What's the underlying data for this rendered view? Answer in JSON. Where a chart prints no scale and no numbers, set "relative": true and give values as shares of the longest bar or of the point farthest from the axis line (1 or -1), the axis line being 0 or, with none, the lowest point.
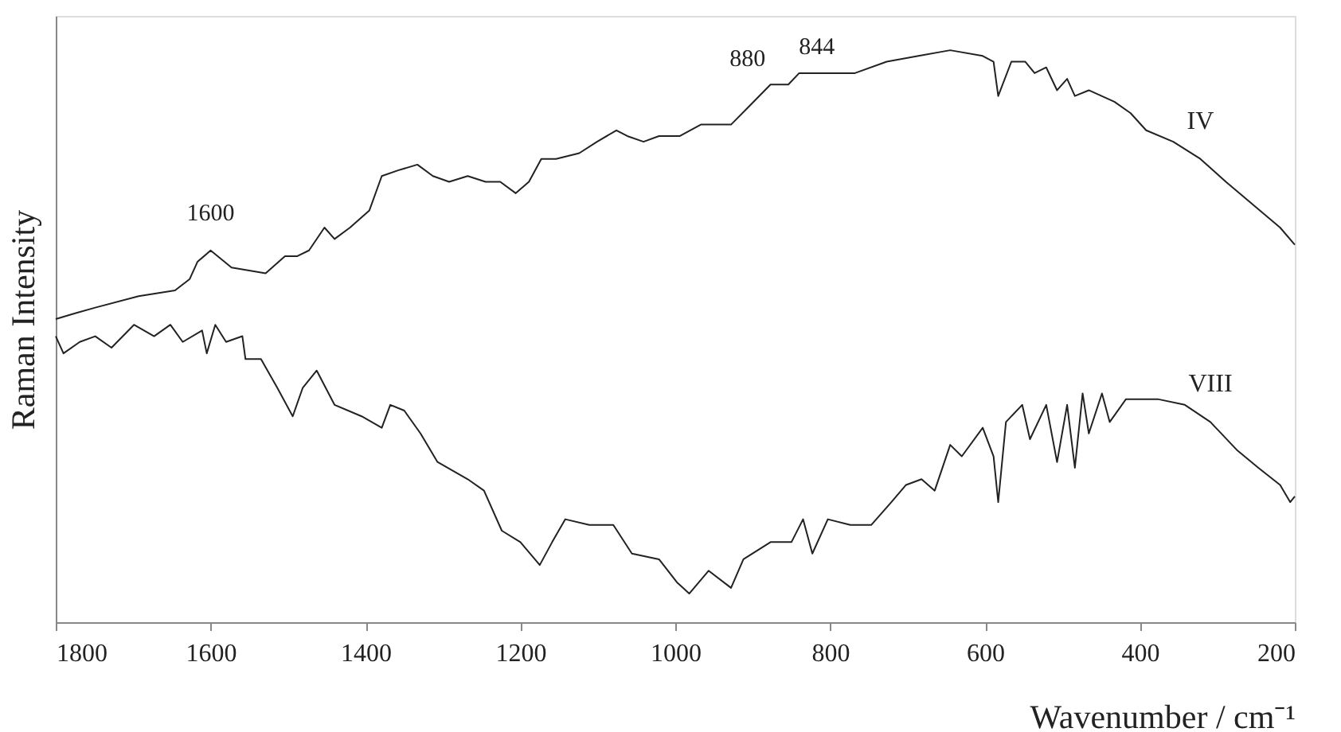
{
  "chart_data": {
    "type": "line",
    "relative": true,
    "xlabel": "Wavenumber / cm⁻¹",
    "ylabel": "Raman Intensity",
    "xlim": [
      1800,
      200
    ],
    "xticks": [
      1800,
      1600,
      1400,
      1200,
      1000,
      800,
      600,
      400,
      200
    ],
    "grid": false,
    "line_style": "solid",
    "marker": "none",
    "annotations": [
      {
        "text": "1600",
        "x": 1600,
        "y": 0.65
      },
      {
        "text": "880",
        "x": 880,
        "y": 0.92
      },
      {
        "text": "844",
        "x": 844,
        "y": 0.94
      }
    ],
    "series": [
      {
        "name": "IV",
        "color": "#222222",
        "x": [
          1800,
          1775,
          1749,
          1693,
          1646,
          1627,
          1617,
          1600,
          1573,
          1529,
          1504,
          1488,
          1473,
          1453,
          1440,
          1420,
          1395,
          1379,
          1358,
          1333,
          1313,
          1292,
          1268,
          1245,
          1226,
          1206,
          1189,
          1173,
          1154,
          1124,
          1101,
          1076,
          1062,
          1041,
          1021,
          994,
          967,
          928,
          906,
          877,
          854,
          840,
          815,
          768,
          727,
          686,
          645,
          603,
          589,
          583,
          566,
          548,
          536,
          521,
          507,
          494,
          484,
          466,
          433,
          412,
          392,
          357,
          322,
          289,
          254,
          219,
          200
        ],
        "values": [
          0.53,
          0.54,
          0.55,
          0.57,
          0.58,
          0.6,
          0.63,
          0.65,
          0.62,
          0.61,
          0.64,
          0.64,
          0.65,
          0.69,
          0.67,
          0.69,
          0.72,
          0.78,
          0.79,
          0.8,
          0.78,
          0.77,
          0.78,
          0.77,
          0.77,
          0.75,
          0.77,
          0.81,
          0.81,
          0.82,
          0.84,
          0.86,
          0.85,
          0.84,
          0.85,
          0.85,
          0.87,
          0.87,
          0.9,
          0.94,
          0.94,
          0.96,
          0.96,
          0.96,
          0.98,
          0.99,
          1.0,
          0.99,
          0.98,
          0.92,
          0.98,
          0.98,
          0.96,
          0.97,
          0.93,
          0.95,
          0.92,
          0.93,
          0.91,
          0.89,
          0.86,
          0.84,
          0.81,
          0.77,
          0.73,
          0.69,
          0.66
        ]
      },
      {
        "name": "VIII",
        "color": "#222222",
        "x": [
          1800,
          1790,
          1769,
          1749,
          1728,
          1699,
          1673,
          1652,
          1636,
          1611,
          1605,
          1594,
          1580,
          1559,
          1555,
          1535,
          1514,
          1494,
          1481,
          1463,
          1440,
          1405,
          1379,
          1368,
          1350,
          1329,
          1307,
          1268,
          1247,
          1224,
          1200,
          1175,
          1159,
          1142,
          1111,
          1080,
          1056,
          1021,
          998,
          982,
          957,
          928,
          912,
          877,
          850,
          835,
          823,
          803,
          774,
          747,
          721,
          702,
          682,
          665,
          645,
          630,
          603,
          589,
          583,
          573,
          552,
          542,
          521,
          507,
          494,
          484,
          474,
          466,
          449,
          439,
          418,
          377,
          342,
          309,
          274,
          247,
          219,
          206,
          200
        ],
        "values": [
          0.5,
          0.47,
          0.49,
          0.5,
          0.48,
          0.52,
          0.5,
          0.52,
          0.49,
          0.51,
          0.47,
          0.52,
          0.49,
          0.5,
          0.46,
          0.46,
          0.41,
          0.36,
          0.41,
          0.44,
          0.38,
          0.36,
          0.34,
          0.38,
          0.37,
          0.33,
          0.28,
          0.25,
          0.23,
          0.16,
          0.14,
          0.1,
          0.14,
          0.18,
          0.17,
          0.17,
          0.12,
          0.11,
          0.07,
          0.05,
          0.09,
          0.06,
          0.11,
          0.14,
          0.14,
          0.18,
          0.12,
          0.18,
          0.17,
          0.17,
          0.21,
          0.24,
          0.25,
          0.23,
          0.31,
          0.29,
          0.34,
          0.29,
          0.21,
          0.35,
          0.38,
          0.32,
          0.38,
          0.28,
          0.38,
          0.27,
          0.4,
          0.33,
          0.4,
          0.35,
          0.39,
          0.39,
          0.38,
          0.35,
          0.3,
          0.27,
          0.24,
          0.21,
          0.22
        ]
      }
    ]
  }
}
